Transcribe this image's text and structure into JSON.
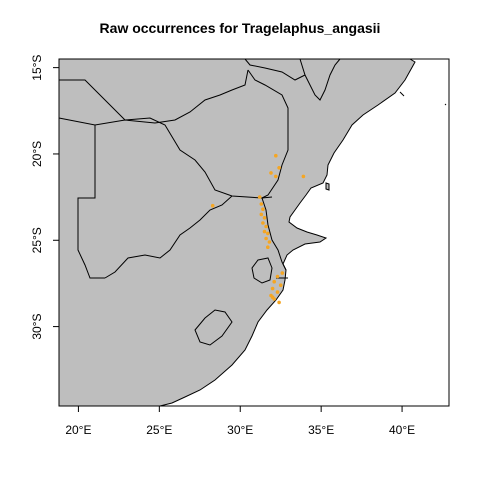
{
  "title": "Raw occurrences for Tragelaphus_angasii",
  "colors": {
    "land": "#bebebe",
    "sea": "#ffffff",
    "border": "#000000",
    "occurrence": "#f5a623"
  },
  "chart_data": {
    "type": "scatter",
    "title": "Raw occurrences for Tragelaphus_angasii",
    "xlabel": "",
    "ylabel": "",
    "xlim": [
      18.8,
      42.9
    ],
    "ylim": [
      -34.6,
      -14.5
    ],
    "x_ticks": [
      {
        "value": 20,
        "label": "20°E"
      },
      {
        "value": 25,
        "label": "25°E"
      },
      {
        "value": 30,
        "label": "30°E"
      },
      {
        "value": 35,
        "label": "35°E"
      },
      {
        "value": 40,
        "label": "40°E"
      }
    ],
    "y_ticks": [
      {
        "value": -15,
        "label": "15°S"
      },
      {
        "value": -20,
        "label": "20°S"
      },
      {
        "value": -25,
        "label": "25°S"
      },
      {
        "value": -30,
        "label": "30°S"
      }
    ],
    "grid": false,
    "series": [
      {
        "points": [
          [
            32.2,
            -20.1
          ],
          [
            32.4,
            -20.8
          ],
          [
            31.9,
            -21.1
          ],
          [
            32.2,
            -21.3
          ],
          [
            33.9,
            -21.3
          ],
          [
            28.3,
            -23.0
          ],
          [
            31.2,
            -22.5
          ],
          [
            31.3,
            -22.9
          ],
          [
            31.4,
            -23.2
          ],
          [
            31.3,
            -23.5
          ],
          [
            31.5,
            -23.7
          ],
          [
            31.4,
            -24.0
          ],
          [
            31.6,
            -24.2
          ],
          [
            31.5,
            -24.5
          ],
          [
            31.7,
            -24.6
          ],
          [
            31.6,
            -24.9
          ],
          [
            31.8,
            -25.1
          ],
          [
            31.7,
            -25.4
          ],
          [
            32.3,
            -27.1
          ],
          [
            32.1,
            -27.4
          ],
          [
            32.5,
            -27.6
          ],
          [
            32.0,
            -27.8
          ],
          [
            32.3,
            -28.0
          ],
          [
            31.9,
            -28.2
          ],
          [
            32.1,
            -28.4
          ],
          [
            32.4,
            -28.6
          ],
          [
            32.0,
            -28.3
          ],
          [
            32.6,
            -26.9
          ]
        ]
      }
    ]
  }
}
